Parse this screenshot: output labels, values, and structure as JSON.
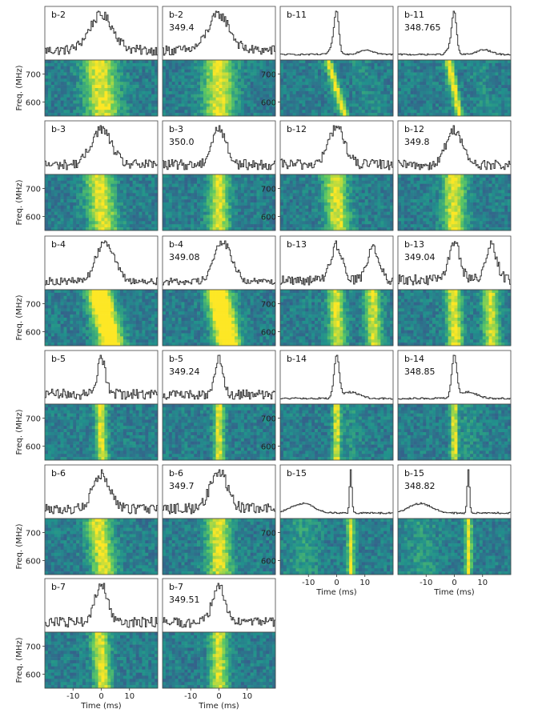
{
  "figure": {
    "freq_axis_label": "Freq. (MHz)",
    "time_axis_label": "Time (ms)",
    "freq_ticks": [
      "700",
      "600"
    ],
    "time_ticks": [
      "-10",
      "0",
      "10"
    ],
    "colormap": [
      "#440154",
      "#3b528b",
      "#21918c",
      "#5ec962",
      "#fde725"
    ]
  },
  "chart_data": [
    {
      "type": "heatmap",
      "burst": "b-2",
      "dm": "",
      "profile": {
        "width": 4.2,
        "drift": 0.5,
        "peak_count": 1
      },
      "xlim": [
        -20,
        20
      ],
      "ylim": [
        550,
        750
      ]
    },
    {
      "type": "heatmap",
      "burst": "b-2",
      "dm": "349.4",
      "profile": {
        "width": 3.8,
        "drift": 0.0,
        "peak_count": 1
      },
      "xlim": [
        -20,
        20
      ],
      "ylim": [
        550,
        750
      ]
    },
    {
      "type": "heatmap",
      "burst": "b-11",
      "dm": "",
      "profile": {
        "width": 0.8,
        "drift": 1.5,
        "peak_count": 3
      },
      "xlim": [
        -20,
        20
      ],
      "ylim": [
        550,
        750
      ]
    },
    {
      "type": "heatmap",
      "burst": "b-11",
      "dm": "348.765",
      "profile": {
        "width": 0.8,
        "drift": 1.0,
        "peak_count": 3
      },
      "xlim": [
        -20,
        20
      ],
      "ylim": [
        550,
        750
      ]
    },
    {
      "type": "heatmap",
      "burst": "b-3",
      "dm": "",
      "profile": {
        "width": 3.5,
        "drift": 0.6,
        "peak_count": 1
      },
      "xlim": [
        -20,
        20
      ],
      "ylim": [
        550,
        750
      ]
    },
    {
      "type": "heatmap",
      "burst": "b-3",
      "dm": "350.0",
      "profile": {
        "width": 2.5,
        "drift": 0.0,
        "peak_count": 1
      },
      "xlim": [
        -20,
        20
      ],
      "ylim": [
        550,
        750
      ]
    },
    {
      "type": "heatmap",
      "burst": "b-12",
      "dm": "",
      "profile": {
        "width": 2.8,
        "drift": 0.4,
        "peak_count": 1
      },
      "xlim": [
        -20,
        20
      ],
      "ylim": [
        550,
        750
      ]
    },
    {
      "type": "heatmap",
      "burst": "b-12",
      "dm": "349.8",
      "profile": {
        "width": 2.8,
        "drift": 0.0,
        "peak_count": 1
      },
      "xlim": [
        -20,
        20
      ],
      "ylim": [
        550,
        750
      ]
    },
    {
      "type": "heatmap",
      "burst": "b-4",
      "dm": "",
      "profile": {
        "width": 2.6,
        "drift": 1.2,
        "peak_count": 2
      },
      "xlim": [
        -20,
        20
      ],
      "ylim": [
        550,
        750
      ]
    },
    {
      "type": "heatmap",
      "burst": "b-4",
      "dm": "349.08",
      "profile": {
        "width": 2.6,
        "drift": 1.0,
        "peak_count": 2
      },
      "xlim": [
        -20,
        20
      ],
      "ylim": [
        550,
        750
      ]
    },
    {
      "type": "heatmap",
      "burst": "b-13",
      "dm": "",
      "profile": {
        "width": 2.0,
        "drift": 0.2,
        "peak_count": 2
      },
      "xlim": [
        -20,
        20
      ],
      "ylim": [
        550,
        750
      ]
    },
    {
      "type": "heatmap",
      "burst": "b-13",
      "dm": "349.04",
      "profile": {
        "width": 2.0,
        "drift": 0.2,
        "peak_count": 2
      },
      "xlim": [
        -20,
        20
      ],
      "ylim": [
        550,
        750
      ]
    },
    {
      "type": "heatmap",
      "burst": "b-5",
      "dm": "",
      "profile": {
        "width": 1.4,
        "drift": 0.2,
        "peak_count": 1
      },
      "xlim": [
        -20,
        20
      ],
      "ylim": [
        550,
        750
      ]
    },
    {
      "type": "heatmap",
      "burst": "b-5",
      "dm": "349.24",
      "profile": {
        "width": 1.3,
        "drift": 0.0,
        "peak_count": 1
      },
      "xlim": [
        -20,
        20
      ],
      "ylim": [
        550,
        750
      ]
    },
    {
      "type": "heatmap",
      "burst": "b-14",
      "dm": "",
      "profile": {
        "width": 0.9,
        "drift": 0.0,
        "peak_count": 2
      },
      "xlim": [
        -20,
        20
      ],
      "ylim": [
        550,
        750
      ]
    },
    {
      "type": "heatmap",
      "burst": "b-14",
      "dm": "348.85",
      "profile": {
        "width": 0.9,
        "drift": 0.0,
        "peak_count": 2
      },
      "xlim": [
        -20,
        20
      ],
      "ylim": [
        550,
        750
      ]
    },
    {
      "type": "heatmap",
      "burst": "b-6",
      "dm": "",
      "profile": {
        "width": 3.0,
        "drift": 0.6,
        "peak_count": 1
      },
      "xlim": [
        -20,
        20
      ],
      "ylim": [
        550,
        750
      ]
    },
    {
      "type": "heatmap",
      "burst": "b-6",
      "dm": "349.7",
      "profile": {
        "width": 3.0,
        "drift": 0.2,
        "peak_count": 1
      },
      "xlim": [
        -20,
        20
      ],
      "ylim": [
        550,
        750
      ]
    },
    {
      "type": "heatmap",
      "burst": "b-15",
      "dm": "",
      "profile": {
        "width": 0.4,
        "drift": 0.0,
        "peak_count": 2
      },
      "xlim": [
        -20,
        20
      ],
      "ylim": [
        550,
        750
      ]
    },
    {
      "type": "heatmap",
      "burst": "b-15",
      "dm": "348.82",
      "profile": {
        "width": 0.4,
        "drift": 0.0,
        "peak_count": 2
      },
      "xlim": [
        -20,
        20
      ],
      "ylim": [
        550,
        750
      ]
    },
    {
      "type": "heatmap",
      "burst": "b-7",
      "dm": "",
      "profile": {
        "width": 2.2,
        "drift": 0.4,
        "peak_count": 1
      },
      "xlim": [
        -20,
        20
      ],
      "ylim": [
        550,
        750
      ]
    },
    {
      "type": "heatmap",
      "burst": "b-7",
      "dm": "349.51",
      "profile": {
        "width": 2.2,
        "drift": 0.0,
        "peak_count": 1
      },
      "xlim": [
        -20,
        20
      ],
      "ylim": [
        550,
        750
      ]
    }
  ]
}
